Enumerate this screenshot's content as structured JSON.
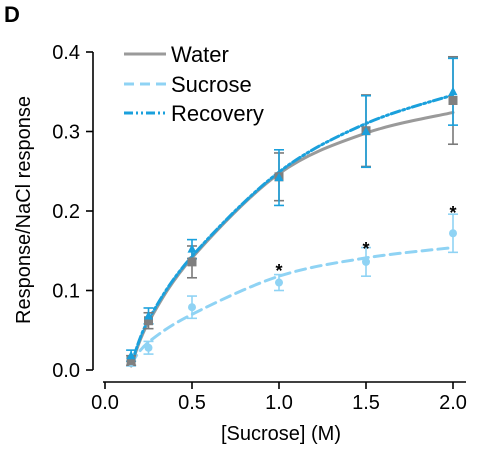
{
  "panel_label": "D",
  "chart_data": {
    "type": "line",
    "xlabel": "[Sucrose] (M)",
    "ylabel": "Response/NaCl response",
    "xlim": [
      0.0,
      2.1
    ],
    "ylim": [
      0.0,
      0.42
    ],
    "xticks": [
      "0.0",
      "0.5",
      "1.0",
      "1.5",
      "2.0"
    ],
    "xtick_values": [
      0.0,
      0.5,
      1.0,
      1.5,
      2.0
    ],
    "yticks": [
      "0.0",
      "0.1",
      "0.2",
      "0.3",
      "0.4"
    ],
    "ytick_values": [
      0.0,
      0.1,
      0.2,
      0.3,
      0.4
    ],
    "grid": false,
    "legend_position": "top-left",
    "x": [
      0.15,
      0.25,
      0.5,
      1.0,
      1.5,
      2.0
    ],
    "series": [
      {
        "name": "Water",
        "color": "#9a9a9a",
        "line_style": "solid",
        "marker": "square",
        "values": [
          0.012,
          0.062,
          0.136,
          0.243,
          0.301,
          0.339
        ],
        "errors": [
          0.006,
          0.01,
          0.02,
          0.03,
          0.045,
          0.055
        ],
        "fit": [
          0.005,
          0.06,
          0.141,
          0.247,
          0.298,
          0.324
        ]
      },
      {
        "name": "Sucrose",
        "color": "#8fd3f4",
        "line_style": "dashed",
        "marker": "circle",
        "values": [
          0.01,
          0.028,
          0.079,
          0.11,
          0.136,
          0.172
        ],
        "errors": [
          0.005,
          0.008,
          0.014,
          0.01,
          0.018,
          0.024
        ],
        "fit": [
          0.008,
          0.035,
          0.07,
          0.118,
          0.141,
          0.154
        ]
      },
      {
        "name": "Recovery",
        "color": "#1aa0dc",
        "line_style": "dash-dot",
        "marker": "triangle",
        "values": [
          0.018,
          0.068,
          0.152,
          0.242,
          0.3,
          0.35
        ],
        "errors": [
          0.007,
          0.01,
          0.012,
          0.035,
          0.045,
          0.042
        ],
        "fit": [
          0.006,
          0.063,
          0.143,
          0.249,
          0.31,
          0.346
        ]
      }
    ],
    "annotations": [
      {
        "text": "*",
        "x": 1.0,
        "y": 0.132
      },
      {
        "text": "*",
        "x": 1.5,
        "y": 0.16
      },
      {
        "text": "*",
        "x": 2.0,
        "y": 0.205
      }
    ]
  }
}
